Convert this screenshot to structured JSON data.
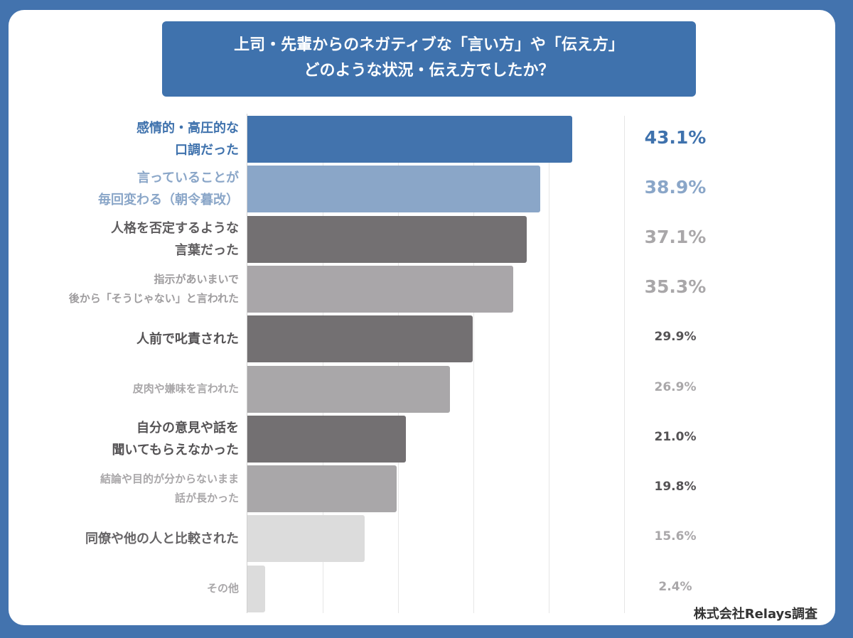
{
  "title": {
    "line1": "上司・先輩からのネガティブな「言い方」や「伝え方」",
    "line2": "どのような状況・伝え方でしたか？"
  },
  "source": "株式会社Relays調査",
  "chart_data": {
    "type": "bar",
    "orientation": "horizontal",
    "xlim": [
      0,
      50
    ],
    "grid": true,
    "unit": "%",
    "categories": [
      [
        "感情的・高圧的な",
        "口調だった"
      ],
      [
        "言っていることが",
        "毎回変わる（朝令暮改）"
      ],
      [
        "人格を否定するような",
        "言葉だった"
      ],
      [
        "指示があいまいで",
        "後から「そうじゃない」と言われた"
      ],
      [
        "人前で叱責された"
      ],
      [
        "皮肉や嫌味を言われた"
      ],
      [
        "自分の意見や話を",
        "聞いてもらえなかった"
      ],
      [
        "結論や目的が分からないまま",
        "話が長かった"
      ],
      [
        "同僚や他の人と比較された"
      ],
      [
        "その他"
      ]
    ],
    "values": [
      43.1,
      38.9,
      37.1,
      35.3,
      29.9,
      26.9,
      21.0,
      19.8,
      15.6,
      2.4
    ],
    "value_labels": [
      "43.1%",
      "38.9%",
      "37.1%",
      "35.3%",
      "29.9%",
      "26.9%",
      "21.0%",
      "19.8%",
      "15.6%",
      "2.4%"
    ],
    "colors": [
      "#4273ad",
      "#8aa6c8",
      "#737072",
      "#a9a6a9",
      "#737072",
      "#a9a7a9",
      "#737072",
      "#a9a7a9",
      "#dcdcdc",
      "#dcdcdc"
    ],
    "label_colors": [
      "#3f72ad",
      "#8aa6c8",
      "#5f5d5f",
      "#9e9c9e",
      "#555355",
      "#a9a7a9",
      "#555355",
      "#a9a7a9",
      "#666466",
      "#a9a7a9"
    ],
    "value_colors": [
      "#3f72ad",
      "#8aa6c8",
      "#a9a7a9",
      "#a9a7a9",
      "#555355",
      "#a9a7a9",
      "#555355",
      "#555355",
      "#a9a7a9",
      "#a9a7a9"
    ]
  }
}
